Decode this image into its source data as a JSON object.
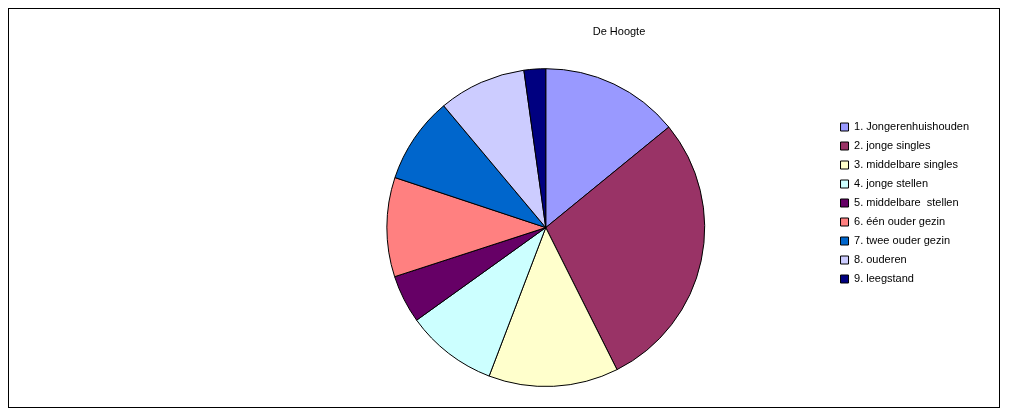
{
  "chart_data": {
    "type": "pie",
    "title": "De Hoogte",
    "categories": [
      "1. Jongerenhuishouden",
      "2. jonge singles",
      "3. middelbare singles",
      "4. jonge stellen",
      "5. middelbare  stellen",
      "6. één ouder gezin",
      "7. twee ouder gezin",
      "8. ouderen",
      "9. leegstand"
    ],
    "values": [
      14.1,
      28.5,
      13.2,
      9.3,
      4.9,
      10.1,
      8.8,
      8.9,
      2.2
    ],
    "colors": [
      "#9999ff",
      "#993366",
      "#ffffcc",
      "#ccffff",
      "#660066",
      "#ff8080",
      "#0066cc",
      "#ccccff",
      "#000080"
    ],
    "legend": "right"
  }
}
